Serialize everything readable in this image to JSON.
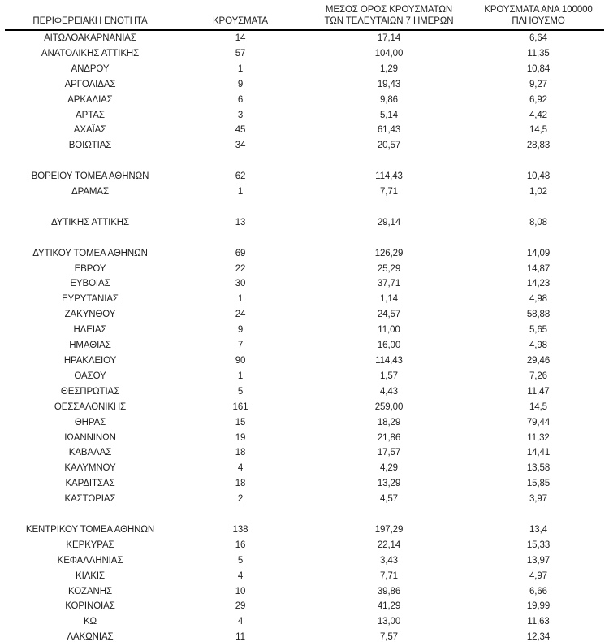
{
  "table": {
    "headers": [
      "ΠΕΡΙΦΕΡΕΙΑΚΗ ΕΝΟΤΗΤΑ",
      "ΚΡΟΥΣΜΑΤΑ",
      "ΜΕΣΟΣ ΟΡΟΣ ΚΡΟΥΣΜΑΤΩΝ\nΤΩΝ ΤΕΛΕΥΤΑΙΩΝ 7 ΗΜΕΡΩΝ",
      "ΚΡΟΥΣΜΑΤΑ ΑΝΑ 100000\nΠΛΗΘΥΣΜΟ"
    ],
    "rows": [
      {
        "cells": [
          "ΑΙΤΩΛΟΑΚΑΡΝΑΝΙΑΣ",
          "14",
          "17,14",
          "6,64"
        ]
      },
      {
        "cells": [
          "ΑΝΑΤΟΛΙΚΗΣ ΑΤΤΙΚΗΣ",
          "57",
          "104,00",
          "11,35"
        ]
      },
      {
        "cells": [
          "ΑΝΔΡΟΥ",
          "1",
          "1,29",
          "10,84"
        ]
      },
      {
        "cells": [
          "ΑΡΓΟΛΙΔΑΣ",
          "9",
          "19,43",
          "9,27"
        ]
      },
      {
        "cells": [
          "ΑΡΚΑΔΙΑΣ",
          "6",
          "9,86",
          "6,92"
        ]
      },
      {
        "cells": [
          "ΑΡΤΑΣ",
          "3",
          "5,14",
          "4,42"
        ]
      },
      {
        "cells": [
          "ΑΧΑΪΑΣ",
          "45",
          "61,43",
          "14,5"
        ]
      },
      {
        "cells": [
          "ΒΟΙΩΤΙΑΣ",
          "34",
          "20,57",
          "28,83"
        ]
      },
      {
        "spacer": true
      },
      {
        "cells": [
          "ΒΟΡΕΙΟΥ ΤΟΜΕΑ ΑΘΗΝΩΝ",
          "62",
          "114,43",
          "10,48"
        ]
      },
      {
        "cells": [
          "ΔΡΑΜΑΣ",
          "1",
          "7,71",
          "1,02"
        ]
      },
      {
        "spacer": true
      },
      {
        "cells": [
          "ΔΥΤΙΚΗΣ ΑΤΤΙΚΗΣ",
          "13",
          "29,14",
          "8,08"
        ]
      },
      {
        "spacer": true
      },
      {
        "cells": [
          "ΔΥΤΙΚΟΥ ΤΟΜΕΑ ΑΘΗΝΩΝ",
          "69",
          "126,29",
          "14,09"
        ]
      },
      {
        "cells": [
          "ΕΒΡΟΥ",
          "22",
          "25,29",
          "14,87"
        ]
      },
      {
        "cells": [
          "ΕΥΒΟΙΑΣ",
          "30",
          "37,71",
          "14,23"
        ]
      },
      {
        "cells": [
          "ΕΥΡΥΤΑΝΙΑΣ",
          "1",
          "1,14",
          "4,98"
        ]
      },
      {
        "cells": [
          "ΖΑΚΥΝΘΟΥ",
          "24",
          "24,57",
          "58,88"
        ]
      },
      {
        "cells": [
          "ΗΛΕΙΑΣ",
          "9",
          "11,00",
          "5,65"
        ]
      },
      {
        "cells": [
          "ΗΜΑΘΙΑΣ",
          "7",
          "16,00",
          "4,98"
        ]
      },
      {
        "cells": [
          "ΗΡΑΚΛΕΙΟΥ",
          "90",
          "114,43",
          "29,46"
        ]
      },
      {
        "cells": [
          "ΘΑΣΟΥ",
          "1",
          "1,57",
          "7,26"
        ]
      },
      {
        "cells": [
          "ΘΕΣΠΡΩΤΙΑΣ",
          "5",
          "4,43",
          "11,47"
        ]
      },
      {
        "cells": [
          "ΘΕΣΣΑΛΟΝΙΚΗΣ",
          "161",
          "259,00",
          "14,5"
        ]
      },
      {
        "cells": [
          "ΘΗΡΑΣ",
          "15",
          "18,29",
          "79,44"
        ]
      },
      {
        "cells": [
          "ΙΩΑΝΝΙΝΩΝ",
          "19",
          "21,86",
          "11,32"
        ]
      },
      {
        "cells": [
          "ΚΑΒΑΛΑΣ",
          "18",
          "17,57",
          "14,41"
        ]
      },
      {
        "cells": [
          "ΚΑΛΥΜΝΟΥ",
          "4",
          "4,29",
          "13,58"
        ]
      },
      {
        "cells": [
          "ΚΑΡΔΙΤΣΑΣ",
          "18",
          "13,29",
          "15,85"
        ]
      },
      {
        "cells": [
          "ΚΑΣΤΟΡΙΑΣ",
          "2",
          "4,57",
          "3,97"
        ]
      },
      {
        "spacer": true
      },
      {
        "cells": [
          "ΚΕΝΤΡΙΚΟΥ ΤΟΜΕΑ ΑΘΗΝΩΝ",
          "138",
          "197,29",
          "13,4"
        ]
      },
      {
        "cells": [
          "ΚΕΡΚΥΡΑΣ",
          "16",
          "22,14",
          "15,33"
        ]
      },
      {
        "cells": [
          "ΚΕΦΑΛΛΗΝΙΑΣ",
          "5",
          "3,43",
          "13,97"
        ]
      },
      {
        "cells": [
          "ΚΙΛΚΙΣ",
          "4",
          "7,71",
          "4,97"
        ]
      },
      {
        "cells": [
          "ΚΟΖΑΝΗΣ",
          "10",
          "39,86",
          "6,66"
        ]
      },
      {
        "cells": [
          "ΚΟΡΙΝΘΙΑΣ",
          "29",
          "41,29",
          "19,99"
        ]
      },
      {
        "cells": [
          "ΚΩ",
          "4",
          "13,00",
          "11,63"
        ]
      },
      {
        "cells": [
          "ΛΑΚΩΝΙΑΣ",
          "11",
          "7,57",
          "12,34"
        ]
      }
    ]
  }
}
